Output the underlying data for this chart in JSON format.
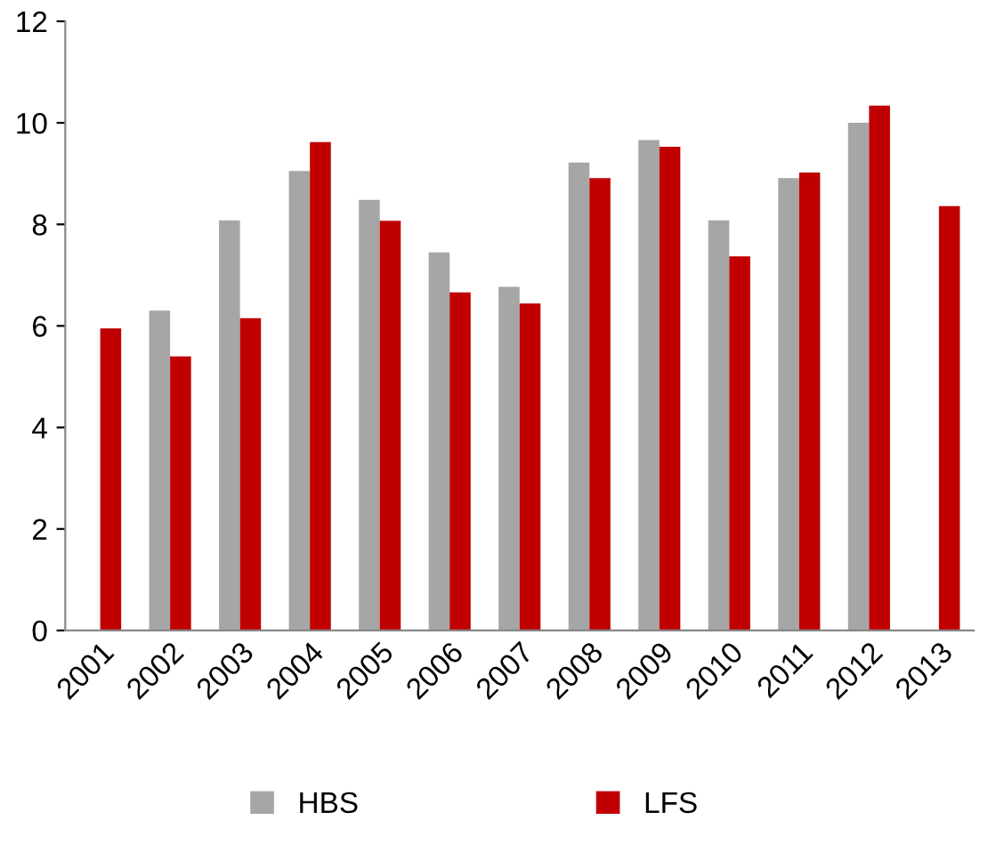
{
  "chart_data": {
    "type": "bar",
    "categories": [
      "2001",
      "2002",
      "2003",
      "2004",
      "2005",
      "2006",
      "2007",
      "2008",
      "2009",
      "2010",
      "2011",
      "2012",
      "2013"
    ],
    "series": [
      {
        "name": "HBS",
        "color": "#a6a6a6",
        "values": [
          null,
          6.3,
          8.08,
          9.05,
          8.48,
          7.45,
          6.77,
          9.22,
          9.66,
          8.08,
          8.91,
          10.0,
          null
        ]
      },
      {
        "name": "LFS",
        "color": "#c00000",
        "values": [
          5.95,
          5.4,
          6.15,
          9.62,
          8.07,
          6.66,
          6.44,
          8.91,
          9.53,
          7.37,
          9.02,
          10.34,
          8.36
        ]
      }
    ],
    "ylim": [
      0,
      12
    ],
    "yticks": [
      0,
      2,
      4,
      6,
      8,
      10,
      12
    ],
    "grid": false,
    "legend": "bottom"
  }
}
